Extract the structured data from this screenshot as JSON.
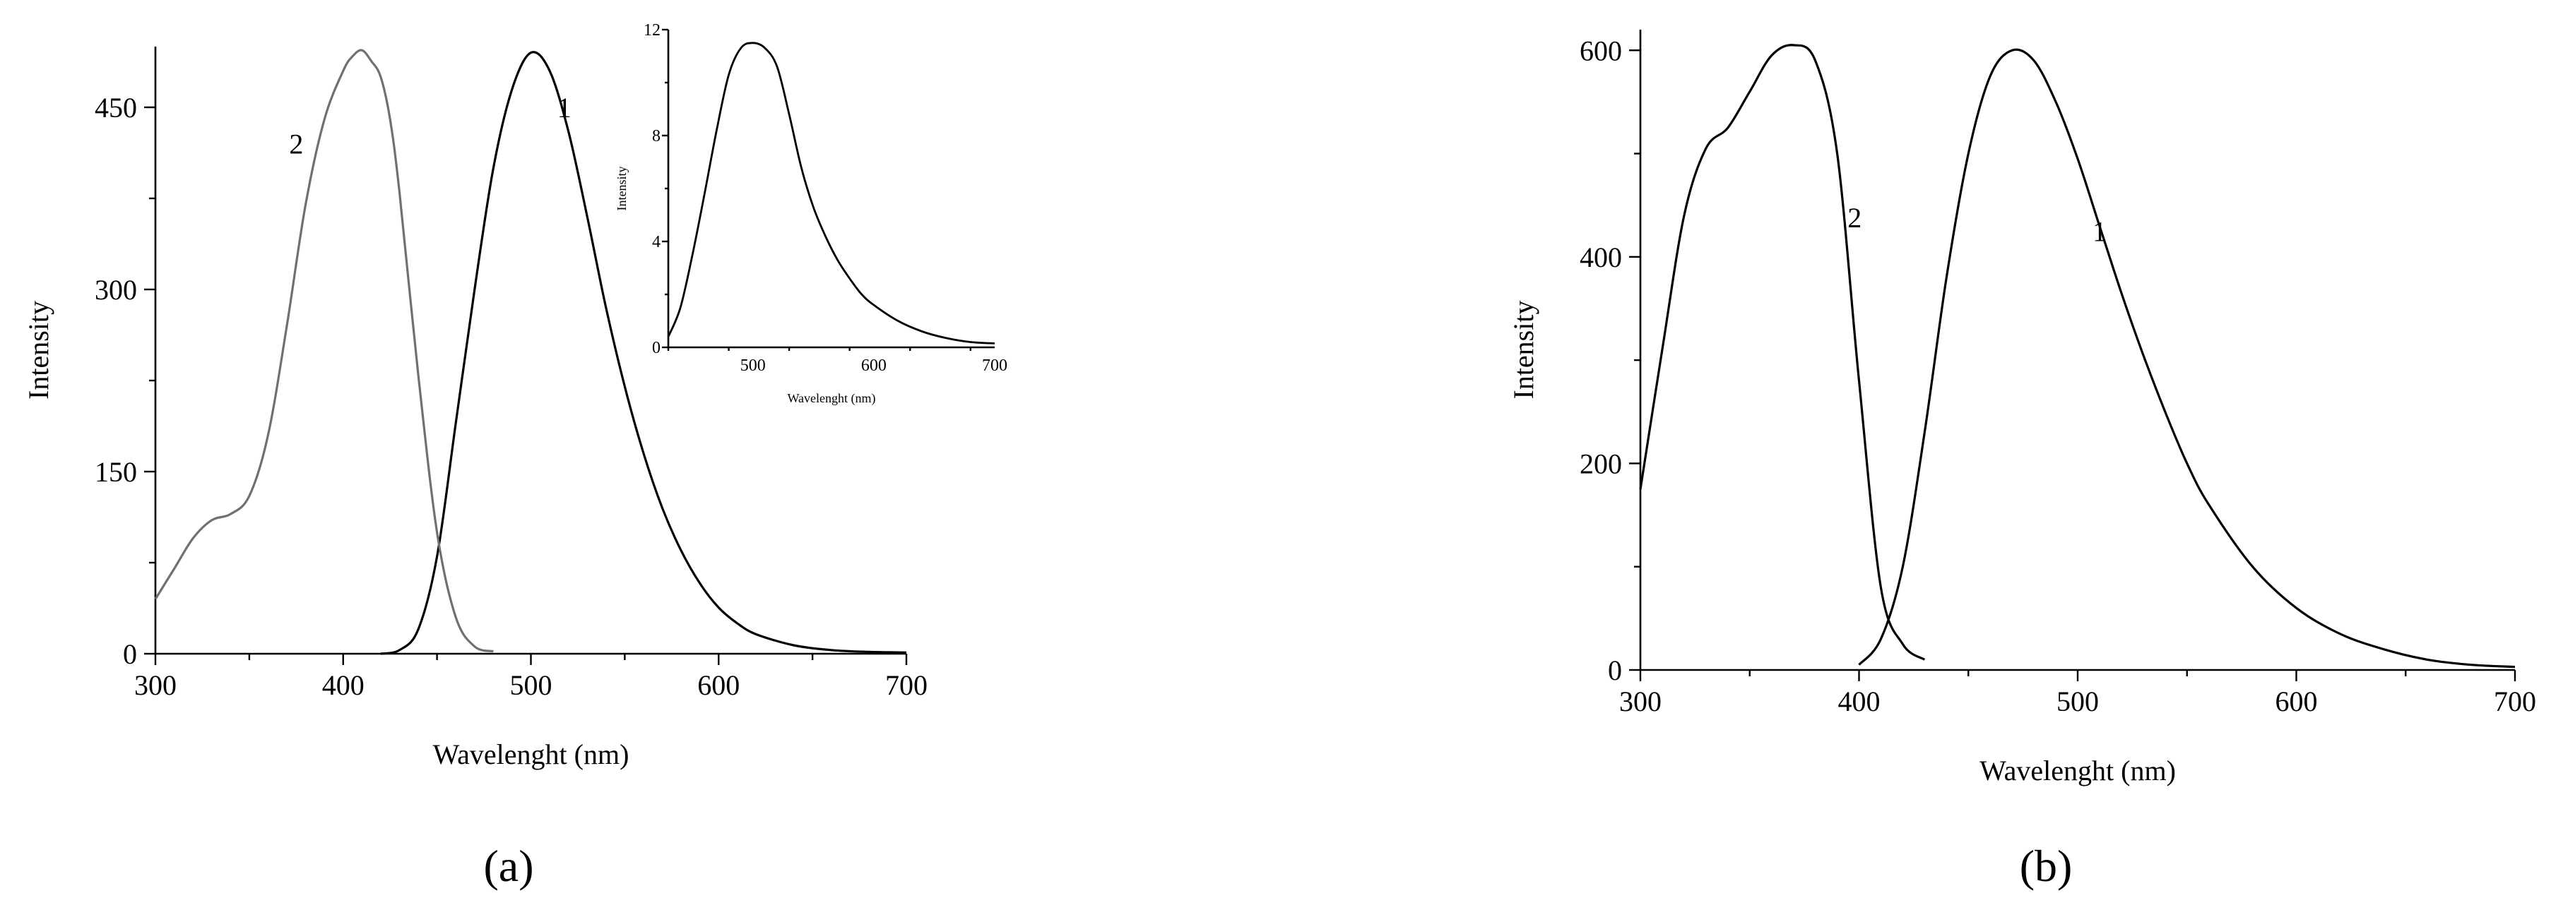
{
  "chart_data": [
    {
      "type": "line",
      "panel_label": "(a)",
      "xlabel": "Wavelenght (nm)",
      "ylabel": "Intensity",
      "xlim": [
        300,
        700
      ],
      "ylim": [
        0,
        500
      ],
      "xticks": [
        300,
        400,
        500,
        600,
        700
      ],
      "yticks": [
        0,
        150,
        300,
        450
      ],
      "series": [
        {
          "name": "1",
          "color": "#000000",
          "x": [
            420,
            430,
            440,
            450,
            460,
            470,
            480,
            490,
            500,
            510,
            520,
            530,
            540,
            550,
            560,
            570,
            580,
            590,
            600,
            610,
            620,
            640,
            660,
            680,
            700
          ],
          "y": [
            0,
            3,
            20,
            80,
            190,
            300,
            400,
            465,
            495,
            480,
            430,
            360,
            285,
            220,
            165,
            120,
            85,
            58,
            38,
            25,
            16,
            7,
            3,
            1.5,
            1
          ]
        },
        {
          "name": "2",
          "color": "#707070",
          "x": [
            300,
            310,
            320,
            330,
            340,
            350,
            360,
            370,
            380,
            390,
            400,
            405,
            410,
            415,
            420,
            425,
            430,
            440,
            450,
            460,
            470,
            480
          ],
          "y": [
            45,
            70,
            95,
            110,
            115,
            130,
            180,
            270,
            370,
            440,
            480,
            492,
            497,
            488,
            475,
            440,
            380,
            230,
            100,
            30,
            6,
            2
          ]
        }
      ],
      "inset": {
        "type": "line",
        "xlabel": "Wavelenght (nm)",
        "ylabel": "Intensity",
        "xlim": [
          430,
          700
        ],
        "ylim": [
          0,
          12
        ],
        "xticks": [
          500,
          600,
          700
        ],
        "yticks": [
          0,
          4,
          8,
          12
        ],
        "series": [
          {
            "color": "#000000",
            "x": [
              430,
              440,
              450,
              460,
              470,
              480,
              490,
              500,
              510,
              520,
              530,
              540,
              550,
              560,
              570,
              580,
              590,
              600,
              620,
              640,
              660,
              680,
              700
            ],
            "y": [
              0.4,
              1.5,
              3.5,
              5.8,
              8.2,
              10.3,
              11.3,
              11.5,
              11.3,
              10.6,
              8.8,
              6.8,
              5.3,
              4.2,
              3.3,
              2.6,
              2.0,
              1.6,
              1.0,
              0.6,
              0.35,
              0.2,
              0.15
            ]
          }
        ]
      }
    },
    {
      "type": "line",
      "panel_label": "(b)",
      "xlabel": "Wavelenght (nm)",
      "ylabel": "Intensity",
      "xlim": [
        300,
        700
      ],
      "ylim": [
        0,
        620
      ],
      "xticks": [
        300,
        400,
        500,
        600,
        700
      ],
      "yticks": [
        0,
        200,
        400,
        600
      ],
      "series": [
        {
          "name": "1",
          "color": "#000000",
          "x": [
            400,
            410,
            420,
            430,
            440,
            450,
            460,
            470,
            480,
            490,
            500,
            510,
            520,
            530,
            540,
            550,
            560,
            580,
            600,
            620,
            640,
            660,
            680,
            700
          ],
          "y": [
            5,
            30,
            100,
            230,
            380,
            500,
            575,
            600,
            590,
            550,
            495,
            430,
            365,
            305,
            250,
            200,
            160,
            100,
            60,
            35,
            20,
            10,
            5,
            3
          ]
        },
        {
          "name": "2",
          "color": "#000000",
          "x": [
            300,
            310,
            320,
            330,
            340,
            350,
            360,
            370,
            380,
            390,
            400,
            410,
            420,
            430
          ],
          "y": [
            175,
            310,
            440,
            505,
            525,
            560,
            595,
            605,
            590,
            500,
            280,
            80,
            25,
            10
          ]
        }
      ]
    }
  ]
}
